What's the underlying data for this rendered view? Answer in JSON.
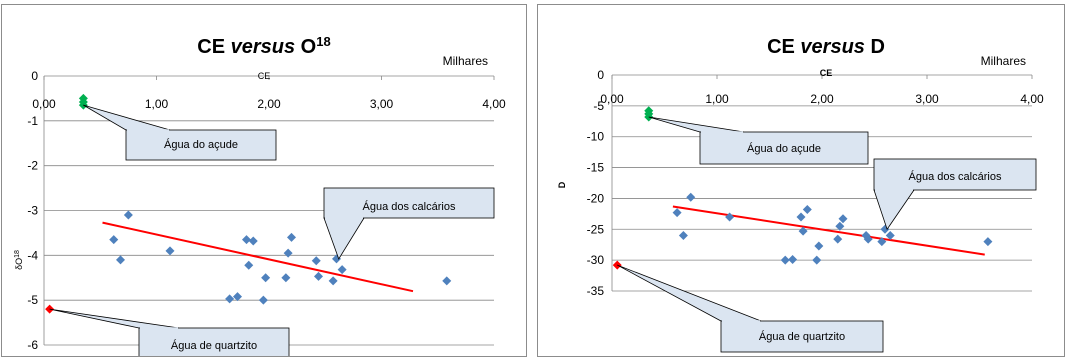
{
  "chart_data": [
    {
      "type": "scatter",
      "title_main": "CE ",
      "title_italic": "versus",
      "title_rest": " O",
      "title_sup": "18",
      "xlabel": "CE",
      "ylabel": "δO",
      "ylabel_sup": "18",
      "x_unit_label": "Milhares",
      "xlim": [
        0,
        4
      ],
      "ylim": [
        -6,
        0
      ],
      "xticks": [
        "0,00",
        "1,00",
        "2,00",
        "3,00",
        "4,00"
      ],
      "yticks": [
        "0",
        "-1",
        "-2",
        "-3",
        "-4",
        "-5",
        "-6"
      ],
      "grid": true,
      "series": [
        {
          "color": "#4f81bd",
          "points": [
            [
              0.62,
              -3.65
            ],
            [
              0.68,
              -4.1
            ],
            [
              0.75,
              -3.1
            ],
            [
              1.12,
              -3.9
            ],
            [
              1.65,
              -4.97
            ],
            [
              1.72,
              -4.92
            ],
            [
              1.8,
              -3.65
            ],
            [
              1.82,
              -4.22
            ],
            [
              1.86,
              -3.68
            ],
            [
              1.95,
              -5.0
            ],
            [
              1.97,
              -4.5
            ],
            [
              2.15,
              -4.5
            ],
            [
              2.17,
              -3.95
            ],
            [
              2.2,
              -3.6
            ],
            [
              2.42,
              -4.12
            ],
            [
              2.44,
              -4.47
            ],
            [
              2.57,
              -4.57
            ],
            [
              2.6,
              -4.08
            ],
            [
              2.65,
              -4.32
            ],
            [
              3.58,
              -4.57
            ]
          ]
        },
        {
          "color": "#00b050",
          "points": [
            [
              0.35,
              -0.5
            ],
            [
              0.35,
              -0.58
            ],
            [
              0.35,
              -0.65
            ]
          ]
        },
        {
          "color": "#ff0000",
          "points": [
            [
              0.05,
              -5.2
            ]
          ]
        }
      ],
      "trendline": {
        "color": "#ff0000",
        "x": [
          0.52,
          3.28
        ],
        "y": [
          -3.27,
          -4.8
        ]
      },
      "annotations": [
        {
          "text": "Água do açude",
          "target": [
            0.35,
            -0.65
          ]
        },
        {
          "text": "Água dos calcários",
          "target": [
            2.62,
            -4.08
          ]
        },
        {
          "text": "Água de quartzito",
          "target": [
            0.05,
            -5.2
          ]
        }
      ]
    },
    {
      "type": "scatter",
      "title_main": "CE ",
      "title_italic": "versus",
      "title_rest": " D",
      "title_sup": "",
      "xlabel": "CE",
      "ylabel": "D",
      "ylabel_sup": "",
      "x_unit_label": "Milhares",
      "xlim": [
        0,
        4
      ],
      "ylim": [
        -35,
        0
      ],
      "xticks": [
        "0,00",
        "1,00",
        "2,00",
        "3,00",
        "4,00"
      ],
      "yticks": [
        "0",
        "-5",
        "-10",
        "-15",
        "-20",
        "-25",
        "-30",
        "-35"
      ],
      "grid": true,
      "series": [
        {
          "color": "#4f81bd",
          "points": [
            [
              0.62,
              -22.3
            ],
            [
              0.68,
              -26.0
            ],
            [
              0.75,
              -19.8
            ],
            [
              1.12,
              -23.0
            ],
            [
              1.65,
              -30.0
            ],
            [
              1.72,
              -29.9
            ],
            [
              1.8,
              -23.0
            ],
            [
              1.82,
              -25.3
            ],
            [
              1.86,
              -21.8
            ],
            [
              1.95,
              -30.0
            ],
            [
              1.97,
              -27.7
            ],
            [
              2.15,
              -26.6
            ],
            [
              2.17,
              -24.5
            ],
            [
              2.2,
              -23.3
            ],
            [
              2.42,
              -26.0
            ],
            [
              2.44,
              -26.6
            ],
            [
              2.57,
              -27.0
            ],
            [
              2.6,
              -25.0
            ],
            [
              2.65,
              -26.0
            ],
            [
              3.58,
              -27.0
            ]
          ]
        },
        {
          "color": "#00b050",
          "points": [
            [
              0.35,
              -5.8
            ],
            [
              0.35,
              -6.3
            ],
            [
              0.35,
              -6.8
            ]
          ]
        },
        {
          "color": "#ff0000",
          "points": [
            [
              0.05,
              -30.8
            ]
          ]
        }
      ],
      "trendline": {
        "color": "#ff0000",
        "x": [
          0.58,
          3.55
        ],
        "y": [
          -21.3,
          -29.1
        ]
      },
      "annotations": [
        {
          "text": "Água do açude",
          "target": [
            0.35,
            -6.8
          ]
        },
        {
          "text": "Água dos calcários",
          "target": [
            2.62,
            -25.0
          ]
        },
        {
          "text": "Água de quartzito",
          "target": [
            0.05,
            -30.8
          ]
        }
      ]
    }
  ]
}
